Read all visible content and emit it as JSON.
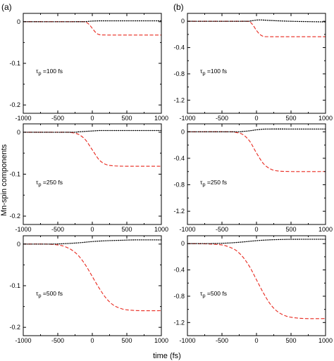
{
  "figure": {
    "column_labels": [
      "(a)",
      "(b)"
    ],
    "ylabel": "Mn-spin components",
    "xlabel": "time (fs)"
  },
  "colors": {
    "dashed_series": "#e8281e",
    "dotted_series": "#000000",
    "frame": "#000000"
  },
  "chart_data": [
    {
      "type": "line",
      "column": "(a)",
      "row": 0,
      "annotation": {
        "tau": "τ",
        "sub": "p",
        "text": "=100 fs"
      },
      "xlim": [
        -1000,
        1000
      ],
      "ylim": [
        -0.22,
        0.02
      ],
      "xticks": [
        -1000,
        -500,
        0,
        500,
        1000
      ],
      "xtick_labels": [
        "-1000",
        "-500",
        "0",
        "500",
        "1000"
      ],
      "yticks": [
        0,
        -0.1,
        -0.2
      ],
      "ytick_labels": [
        "0",
        "-0.1",
        "-0.2"
      ],
      "series": [
        {
          "style": "dashed",
          "color": "#e8281e",
          "x": [
            -1000,
            -200,
            -100,
            -50,
            0,
            50,
            100,
            200,
            500,
            1000
          ],
          "y": [
            0,
            0,
            -0.001,
            -0.006,
            -0.016,
            -0.026,
            -0.031,
            -0.032,
            -0.032,
            -0.032
          ]
        },
        {
          "style": "dotted",
          "color": "#000000",
          "x": [
            -1000,
            -200,
            -100,
            0,
            100,
            200,
            500,
            1000
          ],
          "y": [
            0,
            0,
            0.0003,
            0.0015,
            0.002,
            0.002,
            0.002,
            0.002
          ]
        }
      ]
    },
    {
      "type": "line",
      "column": "(a)",
      "row": 1,
      "annotation": {
        "tau": "τ",
        "sub": "p",
        "text": "=250 fs"
      },
      "xlim": [
        -1000,
        1000
      ],
      "ylim": [
        -0.22,
        0.02
      ],
      "xticks": [
        -1000,
        -500,
        0,
        500,
        1000
      ],
      "xtick_labels": [
        "-1000",
        "-500",
        "0",
        "500",
        "1000"
      ],
      "yticks": [
        0,
        -0.1,
        -0.2
      ],
      "ytick_labels": [
        "0",
        "-0.1",
        "-0.2"
      ],
      "series": [
        {
          "style": "dashed",
          "color": "#e8281e",
          "x": [
            -1000,
            -400,
            -300,
            -200,
            -100,
            0,
            100,
            200,
            300,
            500,
            1000
          ],
          "y": [
            0,
            0,
            -0.001,
            -0.005,
            -0.018,
            -0.042,
            -0.066,
            -0.077,
            -0.08,
            -0.081,
            -0.081
          ]
        },
        {
          "style": "dotted",
          "color": "#000000",
          "x": [
            -1000,
            -300,
            -200,
            -100,
            0,
            100,
            200,
            500,
            1000
          ],
          "y": [
            0,
            0,
            0.001,
            0.002,
            0.003,
            0.004,
            0.004,
            0.004,
            0.004
          ]
        }
      ]
    },
    {
      "type": "line",
      "column": "(a)",
      "row": 2,
      "annotation": {
        "tau": "τ",
        "sub": "p",
        "text": "=500 fs"
      },
      "xlim": [
        -1000,
        1000
      ],
      "ylim": [
        -0.22,
        0.02
      ],
      "xticks": [
        -1000,
        -500,
        0,
        500,
        1000
      ],
      "xtick_labels": [
        "-1000",
        "-500",
        "0",
        "500",
        "1000"
      ],
      "yticks": [
        0,
        -0.1,
        -0.2
      ],
      "ytick_labels": [
        "0",
        "-0.1",
        "-0.2"
      ],
      "series": [
        {
          "style": "dashed",
          "color": "#e8281e",
          "x": [
            -1000,
            -700,
            -500,
            -400,
            -300,
            -200,
            -100,
            0,
            100,
            200,
            300,
            400,
            500,
            700,
            1000
          ],
          "y": [
            0,
            0,
            -0.002,
            -0.006,
            -0.014,
            -0.028,
            -0.05,
            -0.078,
            -0.106,
            -0.13,
            -0.146,
            -0.154,
            -0.158,
            -0.16,
            -0.16
          ]
        },
        {
          "style": "dotted",
          "color": "#000000",
          "x": [
            -1000,
            -600,
            -400,
            -200,
            0,
            200,
            400,
            600,
            1000
          ],
          "y": [
            0,
            0,
            0.001,
            0.003,
            0.006,
            0.008,
            0.009,
            0.01,
            0.01
          ]
        }
      ]
    },
    {
      "type": "line",
      "column": "(b)",
      "row": 0,
      "annotation": {
        "tau": "τ",
        "sub": "p",
        "text": "=100 fs"
      },
      "xlim": [
        -1000,
        1000
      ],
      "ylim": [
        -1.4,
        0.12
      ],
      "xticks": [
        -1000,
        -500,
        0,
        500,
        1000
      ],
      "xtick_labels": [
        "-1000",
        "-500",
        "0",
        "500",
        "1000"
      ],
      "yticks": [
        0,
        -0.4,
        -0.8,
        -1.2
      ],
      "ytick_labels": [
        "0",
        "-0.4",
        "-0.8",
        "-1.2"
      ],
      "series": [
        {
          "style": "dashed",
          "color": "#e8281e",
          "x": [
            -1000,
            -200,
            -100,
            -50,
            0,
            50,
            100,
            200,
            500,
            1000
          ],
          "y": [
            0,
            0,
            -0.01,
            -0.06,
            -0.14,
            -0.2,
            -0.23,
            -0.235,
            -0.235,
            -0.235
          ]
        },
        {
          "style": "dotted",
          "color": "#000000",
          "x": [
            -1000,
            -200,
            -100,
            -50,
            0,
            50,
            100,
            200,
            500,
            1000
          ],
          "y": [
            0,
            0,
            0.003,
            0.01,
            0.018,
            0.02,
            0.018,
            0.012,
            0.0,
            -0.01
          ]
        }
      ]
    },
    {
      "type": "line",
      "column": "(b)",
      "row": 1,
      "annotation": {
        "tau": "τ",
        "sub": "p",
        "text": "=250 fs"
      },
      "xlim": [
        -1000,
        1000
      ],
      "ylim": [
        -1.4,
        0.12
      ],
      "xticks": [
        -1000,
        -500,
        0,
        500,
        1000
      ],
      "xtick_labels": [
        "-1000",
        "-500",
        "0",
        "500",
        "1000"
      ],
      "yticks": [
        0,
        -0.4,
        -0.8,
        -1.2
      ],
      "ytick_labels": [
        "0",
        "-0.4",
        "-0.8",
        "-1.2"
      ],
      "series": [
        {
          "style": "dashed",
          "color": "#e8281e",
          "x": [
            -1000,
            -400,
            -300,
            -200,
            -100,
            0,
            100,
            200,
            300,
            500,
            1000
          ],
          "y": [
            0,
            0,
            -0.01,
            -0.04,
            -0.14,
            -0.32,
            -0.48,
            -0.56,
            -0.59,
            -0.6,
            -0.6
          ]
        },
        {
          "style": "dotted",
          "color": "#000000",
          "x": [
            -1000,
            -300,
            -200,
            -100,
            0,
            100,
            200,
            500,
            1000
          ],
          "y": [
            0,
            0,
            0.005,
            0.015,
            0.03,
            0.04,
            0.042,
            0.042,
            0.042
          ]
        }
      ]
    },
    {
      "type": "line",
      "column": "(b)",
      "row": 2,
      "annotation": {
        "tau": "τ",
        "sub": "p",
        "text": "=500 fs"
      },
      "xlim": [
        -1000,
        1000
      ],
      "ylim": [
        -1.4,
        0.12
      ],
      "xticks": [
        -1000,
        -500,
        0,
        500,
        1000
      ],
      "xtick_labels": [
        "-1000",
        "-500",
        "0",
        "500",
        "1000"
      ],
      "yticks": [
        0,
        -0.4,
        -0.8,
        -1.2
      ],
      "ytick_labels": [
        "0",
        "-0.4",
        "-0.8",
        "-1.2"
      ],
      "series": [
        {
          "style": "dashed",
          "color": "#e8281e",
          "x": [
            -1000,
            -700,
            -500,
            -400,
            -300,
            -200,
            -100,
            0,
            100,
            200,
            300,
            400,
            500,
            700,
            1000
          ],
          "y": [
            0,
            -0.005,
            -0.02,
            -0.05,
            -0.1,
            -0.2,
            -0.35,
            -0.55,
            -0.75,
            -0.92,
            -1.03,
            -1.09,
            -1.12,
            -1.14,
            -1.14
          ]
        },
        {
          "style": "dotted",
          "color": "#000000",
          "x": [
            -1000,
            -600,
            -400,
            -200,
            0,
            200,
            400,
            600,
            1000
          ],
          "y": [
            0,
            0.002,
            0.01,
            0.025,
            0.045,
            0.058,
            0.064,
            0.066,
            0.066
          ]
        }
      ]
    }
  ]
}
